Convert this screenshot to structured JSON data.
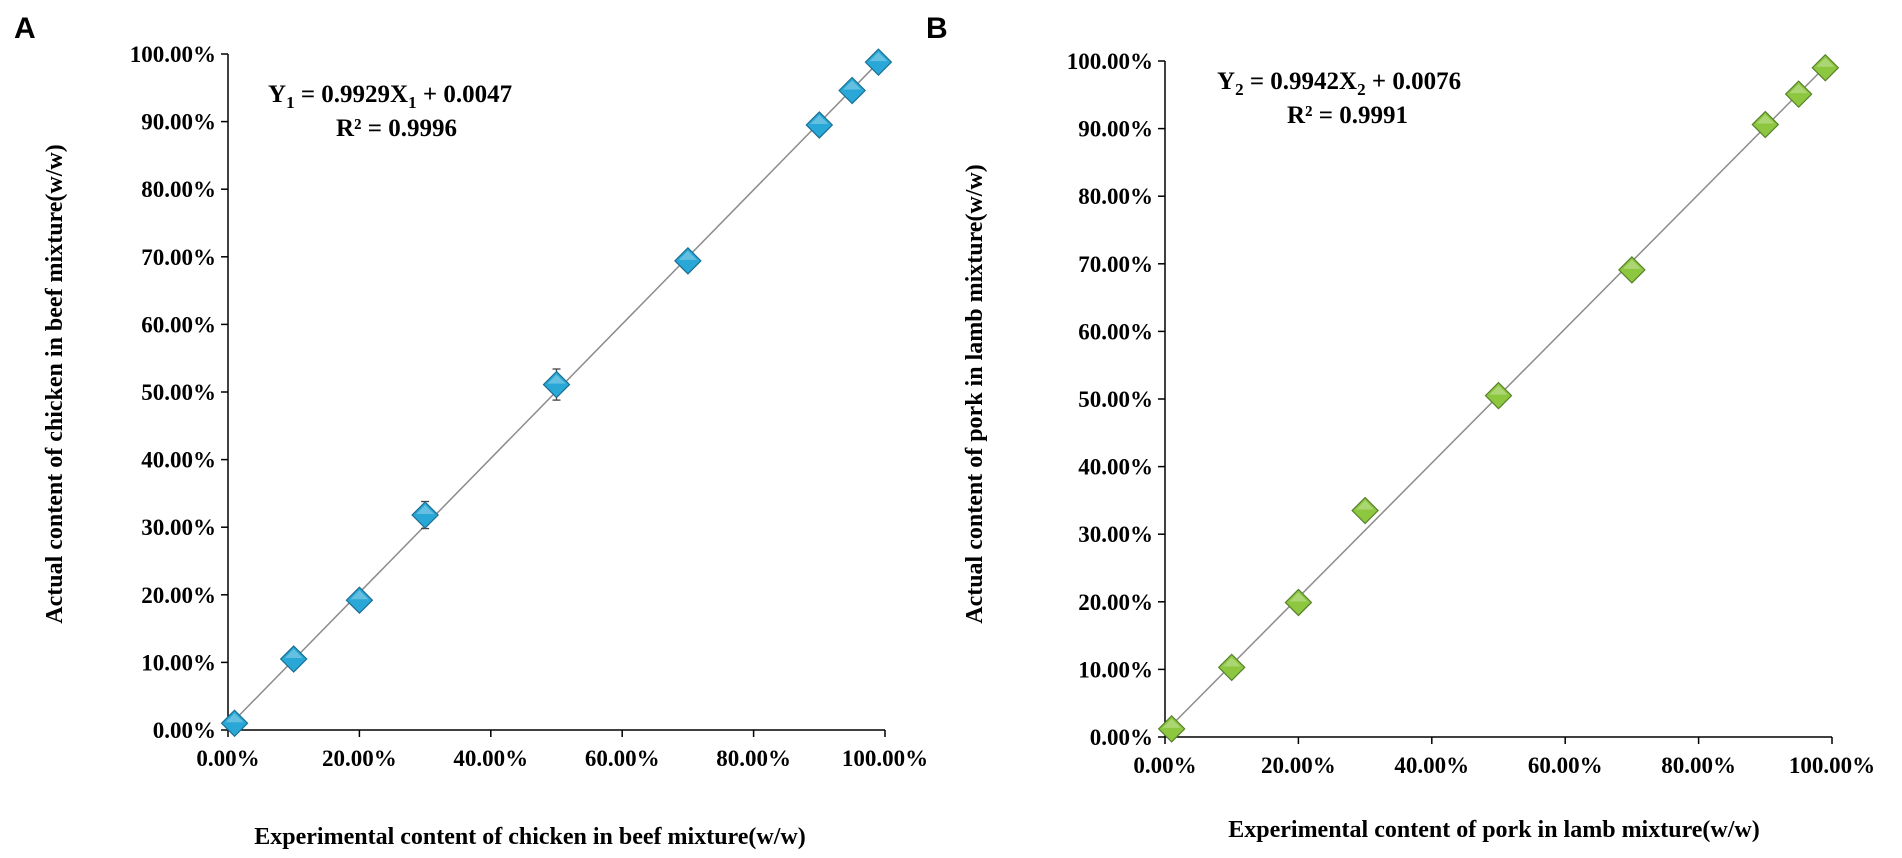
{
  "chart_data": [
    {
      "type": "scatter",
      "panel_label": "A",
      "xlabel": "Experimental content of chicken in beef mixture(w/w)",
      "ylabel": "Actual content of chicken in beef mixture(w/w)",
      "xlim": [
        0,
        1
      ],
      "ylim": [
        0,
        1
      ],
      "x_ticks": [
        "0.00%",
        "20.00%",
        "40.00%",
        "60.00%",
        "80.00%",
        "100.00%"
      ],
      "y_ticks": [
        "0.00%",
        "10.00%",
        "20.00%",
        "30.00%",
        "40.00%",
        "50.00%",
        "60.00%",
        "70.00%",
        "80.00%",
        "90.00%",
        "100.00%"
      ],
      "marker_color": "#29a7d6",
      "marker_edge_color": "#1a6f92",
      "trendline": {
        "slope": 0.9929,
        "intercept": 0.0047,
        "color": "#8c8c8c"
      },
      "equation": {
        "y_var": "Y",
        "y_sub": "1",
        "mid": " = 0.9929X",
        "x_sub": "1",
        "tail": " + 0.0047",
        "r2": "R² = 0.9996"
      },
      "x": [
        0.01,
        0.1,
        0.2,
        0.3,
        0.5,
        0.7,
        0.9,
        0.95,
        0.99
      ],
      "y": [
        0.01,
        0.105,
        0.192,
        0.318,
        0.511,
        0.694,
        0.895,
        0.946,
        0.988
      ],
      "error": [
        0.003,
        0.006,
        0.006,
        0.02,
        0.023,
        0.006,
        0.006,
        0.006,
        0.004
      ]
    },
    {
      "type": "scatter",
      "panel_label": "B",
      "xlabel": "Experimental content of  pork in lamb mixture(w/w)",
      "ylabel": "Actual content of pork in lamb mixture(w/w)",
      "xlim": [
        0,
        1
      ],
      "ylim": [
        0,
        1
      ],
      "x_ticks": [
        "0.00%",
        "20.00%",
        "40.00%",
        "60.00%",
        "80.00%",
        "100.00%"
      ],
      "y_ticks": [
        "0.00%",
        "10.00%",
        "20.00%",
        "30.00%",
        "40.00%",
        "50.00%",
        "60.00%",
        "70.00%",
        "80.00%",
        "90.00%",
        "100.00%"
      ],
      "marker_color": "#8dc63f",
      "marker_edge_color": "#55802a",
      "trendline": {
        "slope": 0.9942,
        "intercept": 0.0076,
        "color": "#8c8c8c"
      },
      "equation": {
        "y_var": "Y",
        "y_sub": "2",
        "mid": " = 0.9942X",
        "x_sub": "2",
        "tail": " + 0.0076",
        "r2": "R² = 0.9991"
      },
      "x": [
        0.01,
        0.1,
        0.2,
        0.3,
        0.5,
        0.7,
        0.9,
        0.95,
        0.99
      ],
      "y": [
        0.012,
        0.103,
        0.199,
        0.335,
        0.505,
        0.691,
        0.906,
        0.951,
        0.99
      ],
      "error": [
        0.003,
        0.004,
        0.004,
        0.004,
        0.005,
        0.004,
        0.005,
        0.005,
        0.004
      ]
    }
  ]
}
